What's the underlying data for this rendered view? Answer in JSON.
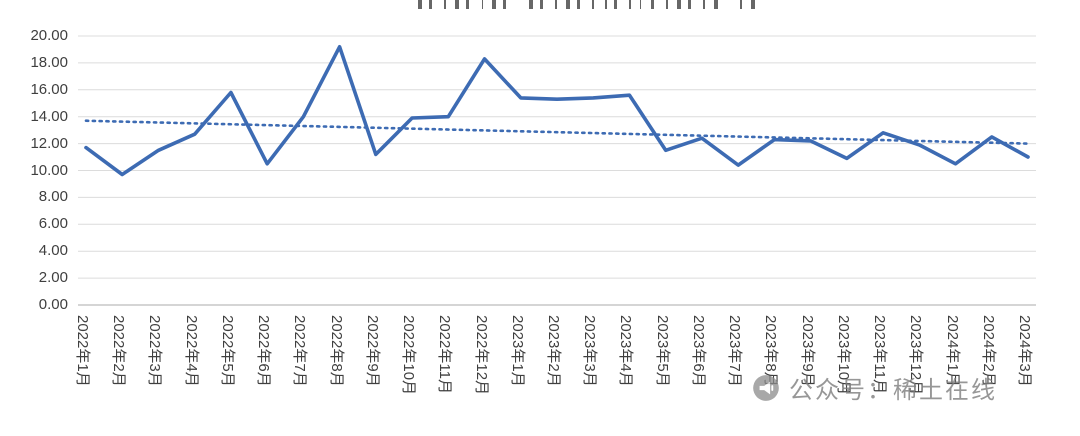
{
  "watermark": {
    "icon": "megaphone-icon",
    "text": "公众号：稀土在线"
  },
  "chart_data": {
    "type": "line",
    "title_cropped": true,
    "categories": [
      "2022年1月",
      "2022年2月",
      "2022年3月",
      "2022年4月",
      "2022年5月",
      "2022年6月",
      "2022年7月",
      "2022年8月",
      "2022年9月",
      "2022年10月",
      "2022年11月",
      "2022年12月",
      "2023年1月",
      "2023年2月",
      "2023年3月",
      "2023年4月",
      "2023年5月",
      "2023年6月",
      "2023年7月",
      "2023年8月",
      "2023年9月",
      "2023年10月",
      "2023年11月",
      "2023年12月",
      "2024年1月",
      "2024年2月",
      "2024年3月"
    ],
    "series": [
      {
        "name": "monthly-value",
        "style": "solid",
        "color": "#3D6BB3",
        "values": [
          11.7,
          9.7,
          11.5,
          12.7,
          15.8,
          10.5,
          14.0,
          19.2,
          11.2,
          13.9,
          14.0,
          18.3,
          15.4,
          15.3,
          15.4,
          15.6,
          11.5,
          12.4,
          10.4,
          12.3,
          12.2,
          10.9,
          12.8,
          11.9,
          10.5,
          12.5,
          11.0
        ]
      },
      {
        "name": "linear-trendline",
        "style": "dotted",
        "color": "#3D6BB3",
        "trend_start": 13.7,
        "trend_end": 12.0
      }
    ],
    "ylim": [
      0,
      20
    ],
    "ytick_step": 2,
    "ytick_labels": [
      "0.00",
      "2.00",
      "4.00",
      "6.00",
      "8.00",
      "10.00",
      "12.00",
      "14.00",
      "16.00",
      "18.00",
      "20.00"
    ],
    "xlabel": "",
    "ylabel": "",
    "grid": true,
    "legend": "none",
    "x_label_rotation_deg": 90,
    "colors": {
      "grid": "#DCDCDC",
      "axis": "#ABABAB",
      "tick_text": "#3F3F3F"
    }
  }
}
